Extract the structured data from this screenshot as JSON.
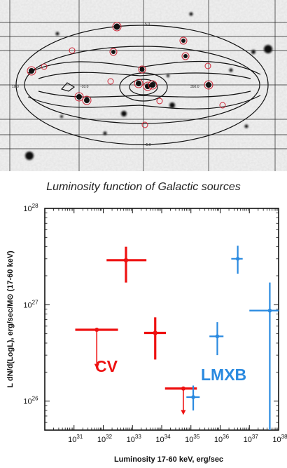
{
  "sky_map": {
    "grid_labels": [
      "10.0",
      "-10.0",
      "350.0",
      "5.0",
      "-5.0"
    ]
  },
  "chart_data": {
    "type": "scatter",
    "title": "Luminosity function of Galactic sources",
    "xlabel": "Luminosity 17-60 keV, erg/sec",
    "ylabel": "L dN/d(LogL), erg/sec/M⊙ (17-60 keV)",
    "x_scale": "log",
    "y_scale": "log",
    "xlim": [
      1e+30,
      1e+38
    ],
    "ylim": [
      5e+25,
      1e+28
    ],
    "x_ticks": [
      {
        "base": "10",
        "exp": "31"
      },
      {
        "base": "10",
        "exp": "32"
      },
      {
        "base": "10",
        "exp": "33"
      },
      {
        "base": "10",
        "exp": "34"
      },
      {
        "base": "10",
        "exp": "35"
      },
      {
        "base": "10",
        "exp": "36"
      },
      {
        "base": "10",
        "exp": "37"
      },
      {
        "base": "10",
        "exp": "38"
      }
    ],
    "y_ticks": [
      {
        "base": "10",
        "exp": "26"
      },
      {
        "base": "10",
        "exp": "27"
      },
      {
        "base": "10",
        "exp": "28"
      }
    ],
    "series": [
      {
        "name": "CV",
        "color": "#ee1111",
        "points": [
          {
            "x": 6e+31,
            "y": 5.5e+26,
            "xlo": 1.1e+31,
            "xhi": 3.2e+32,
            "upper_limit": true,
            "ylo_arrow": 2.2e+26
          },
          {
            "x": 6e+32,
            "y": 2.9e+27,
            "xlo": 1.3e+32,
            "xhi": 3e+33,
            "ylo": 1.7e+27,
            "yhi": 4e+27
          },
          {
            "x": 6e+33,
            "y": 5.1e+26,
            "xlo": 2.5e+33,
            "xhi": 1.4e+34,
            "ylo": 2.7e+26,
            "yhi": 7.4e+26
          },
          {
            "x": 5.5e+34,
            "y": 1.35e+26,
            "xlo": 1.3e+34,
            "xhi": 1.6e+35,
            "upper_limit": true,
            "ylo_arrow": 7.3e+25
          }
        ]
      },
      {
        "name": "LMXB",
        "color": "#2a8ae0",
        "points": [
          {
            "x": 1.2e+35,
            "y": 1.1e+26,
            "xlo": 7e+34,
            "xhi": 2e+35,
            "ylo": 8e+25,
            "yhi": 1.45e+26
          },
          {
            "x": 8e+35,
            "y": 4.7e+26,
            "xlo": 4.3e+35,
            "xhi": 1.3e+36,
            "ylo": 3e+26,
            "yhi": 6.6e+26
          },
          {
            "x": 4e+36,
            "y": 3e+27,
            "xlo": 2.4e+36,
            "xhi": 5.9e+36,
            "ylo": 2.1e+27,
            "yhi": 4.1e+27
          },
          {
            "x": 5e+37,
            "y": 8.7e+26,
            "xlo": 1e+37,
            "xhi": 1e+38,
            "ylo": 5e+25,
            "yhi": 1.7e+27
          }
        ]
      }
    ]
  }
}
